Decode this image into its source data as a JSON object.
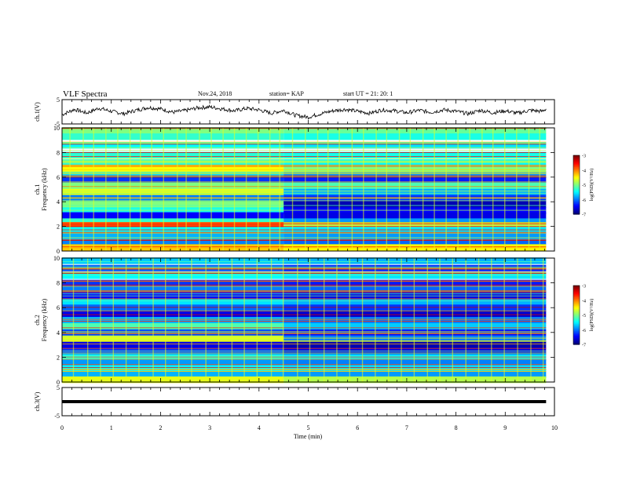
{
  "header": {
    "title": "VLF Spectra",
    "date": "Nov.24, 2018",
    "station": "station= KAP",
    "start": "start  UT =   21: 20: 1"
  },
  "chart_data": [
    {
      "type": "line",
      "title": "",
      "ylabel": "ch.1(V)",
      "ylim": [
        -5,
        5
      ],
      "yticks": [
        "5",
        "-5"
      ],
      "xlim": [
        0,
        10
      ],
      "x_extent": [
        0,
        9.83
      ],
      "series": [
        {
          "x": [
            0,
            0.25,
            0.5,
            0.75,
            1.0,
            1.25,
            1.5,
            1.75,
            2.0,
            2.25,
            2.5,
            2.75,
            3.0,
            3.25,
            3.5,
            3.75,
            4.0,
            4.25,
            4.5,
            4.75,
            5.0,
            5.25,
            5.5,
            5.75,
            6.0,
            6.25,
            6.5,
            6.75,
            7.0,
            7.25,
            7.5,
            7.75,
            8.0,
            8.25,
            8.5,
            8.75,
            9.0,
            9.25,
            9.5,
            9.75,
            9.83
          ],
          "values": [
            -1.2,
            1.0,
            -0.5,
            1.5,
            0.2,
            -0.8,
            0.6,
            1.8,
            1.2,
            -0.2,
            0.5,
            1.6,
            2.0,
            1.2,
            0.4,
            1.4,
            0.8,
            -0.6,
            0.6,
            -1.5,
            -2.2,
            -0.8,
            0.4,
            1.0,
            0.2,
            -0.6,
            0.8,
            0.4,
            -0.4,
            0.6,
            -0.2,
            0.8,
            0.2,
            -0.8,
            0.6,
            -0.4,
            0.4,
            -0.6,
            0.6,
            0.2,
            1.2
          ]
        }
      ]
    },
    {
      "type": "heatmap",
      "title": "",
      "ylabel": "ch.1\nFrequency (kHz)",
      "ylim": [
        0,
        10
      ],
      "yticks": [
        "0",
        "2",
        "4",
        "6",
        "8",
        "10"
      ],
      "xlim": [
        0,
        10
      ],
      "x_extent": [
        0,
        9.83
      ],
      "colorbar": {
        "label": "log(PSD)(V²/Hz)",
        "range": [
          -7,
          -3
        ],
        "ticks": [
          "-3",
          "-4",
          "-5",
          "-6",
          "-7"
        ]
      },
      "change_time_min": 4.5,
      "bands_khz_before": [
        {
          "f": 9.8,
          "v": -5.0
        },
        {
          "f": 9.3,
          "v": -5.3
        },
        {
          "f": 8.6,
          "v": -5.5
        },
        {
          "f": 7.8,
          "v": -5.4
        },
        {
          "f": 7.2,
          "v": -5.3
        },
        {
          "f": 6.7,
          "v": -4.5
        },
        {
          "f": 6.2,
          "v": -5.6
        },
        {
          "f": 5.8,
          "v": -6.3
        },
        {
          "f": 5.3,
          "v": -5.0
        },
        {
          "f": 4.8,
          "v": -4.6
        },
        {
          "f": 4.3,
          "v": -6.0
        },
        {
          "f": 3.8,
          "v": -5.0
        },
        {
          "f": 3.3,
          "v": -5.4
        },
        {
          "f": 2.9,
          "v": -6.5
        },
        {
          "f": 2.4,
          "v": -5.3
        },
        {
          "f": 2.1,
          "v": -3.8
        },
        {
          "f": 1.7,
          "v": -5.5
        },
        {
          "f": 1.2,
          "v": -5.8
        },
        {
          "f": 0.7,
          "v": -6.0
        },
        {
          "f": 0.3,
          "v": -4.3
        }
      ],
      "bands_khz_after": [
        {
          "f": 9.8,
          "v": -5.1
        },
        {
          "f": 9.3,
          "v": -5.4
        },
        {
          "f": 8.6,
          "v": -5.6
        },
        {
          "f": 7.8,
          "v": -5.5
        },
        {
          "f": 7.2,
          "v": -5.5
        },
        {
          "f": 6.7,
          "v": -5.0
        },
        {
          "f": 6.2,
          "v": -5.9
        },
        {
          "f": 5.8,
          "v": -6.4
        },
        {
          "f": 5.3,
          "v": -5.2
        },
        {
          "f": 4.8,
          "v": -5.8
        },
        {
          "f": 4.3,
          "v": -6.3
        },
        {
          "f": 3.8,
          "v": -6.8
        },
        {
          "f": 3.3,
          "v": -6.5
        },
        {
          "f": 2.9,
          "v": -6.6
        },
        {
          "f": 2.4,
          "v": -5.9
        },
        {
          "f": 2.1,
          "v": -4.8
        },
        {
          "f": 1.7,
          "v": -5.6
        },
        {
          "f": 1.2,
          "v": -5.9
        },
        {
          "f": 0.7,
          "v": -6.1
        },
        {
          "f": 0.3,
          "v": -4.5
        }
      ],
      "spike_times_min": [
        0.15,
        0.42,
        0.63,
        0.88,
        1.12,
        1.37,
        1.58,
        1.81,
        2.05,
        2.33,
        2.51,
        2.78,
        3.02,
        3.26,
        3.49,
        3.73,
        3.97,
        4.21,
        4.41,
        4.67,
        4.93,
        5.18,
        5.39,
        5.62,
        5.88,
        6.11,
        6.37,
        6.58,
        6.84,
        7.06,
        7.32,
        7.55,
        7.79,
        8.03,
        8.27,
        8.52,
        8.74,
        8.98,
        9.22,
        9.47,
        9.69
      ]
    },
    {
      "type": "heatmap",
      "title": "",
      "ylabel": "ch.2\nFrequency (kHz)",
      "ylim": [
        0,
        10
      ],
      "yticks": [
        "0",
        "2",
        "4",
        "6",
        "8",
        "10"
      ],
      "xlim": [
        0,
        10
      ],
      "x_extent": [
        0,
        9.83
      ],
      "colorbar": {
        "label": "log(PSD)(V²/Hz)",
        "range": [
          -7,
          -3
        ],
        "ticks": [
          "-3",
          "-4",
          "-5",
          "-6",
          "-7"
        ]
      },
      "change_time_min": 4.5,
      "bands_khz_before": [
        {
          "f": 9.8,
          "v": -5.7
        },
        {
          "f": 9.2,
          "v": -6.1
        },
        {
          "f": 8.6,
          "v": -5.5
        },
        {
          "f": 8.0,
          "v": -6.3
        },
        {
          "f": 7.5,
          "v": -6.0
        },
        {
          "f": 7.0,
          "v": -6.5
        },
        {
          "f": 6.5,
          "v": -5.6
        },
        {
          "f": 6.0,
          "v": -6.1
        },
        {
          "f": 5.5,
          "v": -6.6
        },
        {
          "f": 5.0,
          "v": -5.8
        },
        {
          "f": 4.5,
          "v": -5.2
        },
        {
          "f": 4.0,
          "v": -6.2
        },
        {
          "f": 3.5,
          "v": -4.7
        },
        {
          "f": 3.0,
          "v": -6.6
        },
        {
          "f": 2.5,
          "v": -6.3
        },
        {
          "f": 2.0,
          "v": -5.4
        },
        {
          "f": 1.6,
          "v": -5.9
        },
        {
          "f": 1.1,
          "v": -5.5
        },
        {
          "f": 0.6,
          "v": -5.8
        },
        {
          "f": 0.2,
          "v": -4.6
        }
      ],
      "bands_khz_after": [
        {
          "f": 9.8,
          "v": -5.8
        },
        {
          "f": 9.2,
          "v": -6.3
        },
        {
          "f": 8.6,
          "v": -5.6
        },
        {
          "f": 8.0,
          "v": -6.4
        },
        {
          "f": 7.5,
          "v": -6.1
        },
        {
          "f": 7.0,
          "v": -6.6
        },
        {
          "f": 6.5,
          "v": -5.8
        },
        {
          "f": 6.0,
          "v": -6.3
        },
        {
          "f": 5.5,
          "v": -6.7
        },
        {
          "f": 5.0,
          "v": -6.0
        },
        {
          "f": 4.5,
          "v": -5.7
        },
        {
          "f": 4.0,
          "v": -6.4
        },
        {
          "f": 3.5,
          "v": -6.0
        },
        {
          "f": 3.0,
          "v": -6.8
        },
        {
          "f": 2.5,
          "v": -6.6
        },
        {
          "f": 2.0,
          "v": -5.6
        },
        {
          "f": 1.6,
          "v": -6.0
        },
        {
          "f": 1.1,
          "v": -5.6
        },
        {
          "f": 0.6,
          "v": -5.9
        },
        {
          "f": 0.2,
          "v": -4.8
        }
      ],
      "spike_times_min": [
        0.22,
        0.51,
        0.77,
        1.03,
        1.29,
        1.55,
        1.84,
        2.09,
        2.36,
        2.62,
        2.91,
        3.17,
        3.44,
        3.69,
        3.95,
        4.24,
        4.48,
        4.77,
        5.02,
        5.31,
        5.57,
        5.83,
        6.09,
        6.35,
        6.62,
        6.88,
        7.14,
        7.41,
        7.66,
        7.92,
        8.19,
        8.45,
        8.71,
        8.97,
        9.24,
        9.51,
        9.76
      ]
    },
    {
      "type": "line",
      "title": "",
      "ylabel": "ch.3(V)",
      "ylim": [
        -5,
        5
      ],
      "yticks": [
        "5",
        "-5"
      ],
      "xlim": [
        0,
        10
      ],
      "x_extent": [
        0,
        9.83
      ],
      "series": [
        {
          "x": [
            0,
            9.83
          ],
          "values": [
            0,
            0
          ]
        }
      ]
    }
  ],
  "x_axis": {
    "label": "Time  (min)",
    "ticks": [
      "0",
      "1",
      "2",
      "3",
      "4",
      "5",
      "6",
      "7",
      "8",
      "9",
      "10"
    ]
  }
}
